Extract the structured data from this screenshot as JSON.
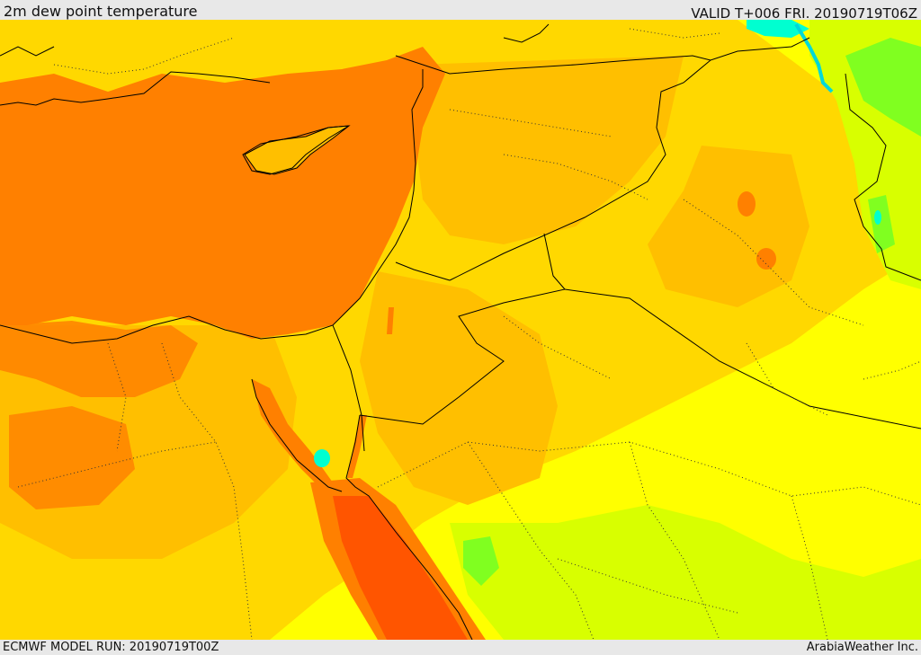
{
  "header": {
    "title": "2m dew point temperature",
    "valid": "VALID T+006 FRI. 20190719T06Z"
  },
  "footer": {
    "model_run": "ECMWF MODEL RUN: 20190719T00Z",
    "credit": "ArabiaWeather Inc."
  },
  "map": {
    "region": "Eastern Mediterranean and Middle East",
    "colors": {
      "yellow": "#ffff00",
      "light_orange": "#ffd800",
      "mid_orange": "#ffbf00",
      "orange": "#ff8000",
      "red_orange": "#ff5500",
      "yellow_green": "#d8ff00",
      "green": "#80ff20",
      "cyan": "#00ffd0",
      "borders": "#000000"
    }
  }
}
